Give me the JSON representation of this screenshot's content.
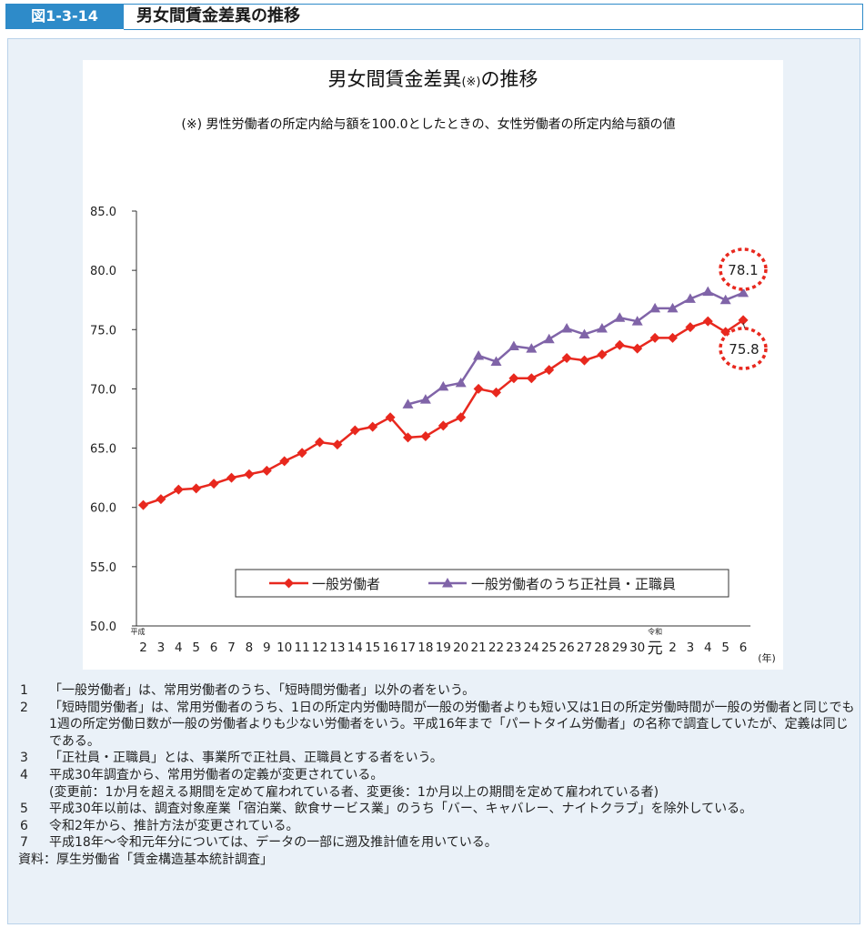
{
  "header": {
    "figure_number": "図1-3-14",
    "title": "男女間賃金差異の推移"
  },
  "chart_data": {
    "type": "line",
    "title_main": "男女間賃金差異",
    "title_mark": "(※)",
    "title_suffix": "の推移",
    "subtitle": "(※)  男性労働者の所定内給与額を100.0としたときの、女性労働者の所定内給与額の値",
    "ylim": [
      50,
      85
    ],
    "y_ticks": [
      "85.0",
      "80.0",
      "75.0",
      "70.0",
      "65.0",
      "60.0",
      "55.0",
      "50.0"
    ],
    "x_labels": [
      "2",
      "3",
      "4",
      "5",
      "6",
      "7",
      "8",
      "9",
      "10",
      "11",
      "12",
      "13",
      "14",
      "15",
      "16",
      "17",
      "18",
      "19",
      "20",
      "21",
      "22",
      "23",
      "24",
      "25",
      "26",
      "27",
      "28",
      "29",
      "30",
      "元",
      "2",
      "3",
      "4",
      "5",
      "6"
    ],
    "era_label_heisei": "平成",
    "era_label_reiwa": "令和",
    "x_unit": "(年)",
    "series": [
      {
        "name": "一般労働者",
        "color": "#e8281e",
        "marker": "diamond",
        "values": [
          60.2,
          60.7,
          61.5,
          61.6,
          62.0,
          62.5,
          62.8,
          63.1,
          63.9,
          64.6,
          65.5,
          65.3,
          66.5,
          66.8,
          67.6,
          65.9,
          66.0,
          66.9,
          67.6,
          70.0,
          69.7,
          70.9,
          70.9,
          71.6,
          72.6,
          72.4,
          72.9,
          73.7,
          73.4,
          74.3,
          74.3,
          75.2,
          75.7,
          74.8,
          75.8
        ]
      },
      {
        "name": "一般労働者のうち正社員・正職員",
        "color": "#8064a8",
        "marker": "triangle",
        "start_index": 15,
        "values": [
          68.7,
          69.1,
          70.2,
          70.5,
          72.8,
          72.3,
          73.6,
          73.4,
          74.2,
          75.1,
          74.6,
          75.1,
          76.0,
          75.7,
          76.8,
          76.8,
          77.6,
          78.2,
          77.5,
          78.1
        ]
      }
    ],
    "annotations": [
      {
        "label": "78.1",
        "series": 1
      },
      {
        "label": "75.8",
        "series": 0
      }
    ],
    "legend_position": "bottom"
  },
  "notes": [
    {
      "num": "1",
      "text": "「一般労働者」は、常用労働者のうち、「短時間労働者」以外の者をいう。"
    },
    {
      "num": "2",
      "text": "「短時間労働者」は、常用労働者のうち、1日の所定内労働時間が一般の労働者よりも短い又は1日の所定労働時間が一般の労働者と同じでも1週の所定労働日数が一般の労働者よりも少ない労働者をいう。平成16年まで「パートタイム労働者」の名称で調査していたが、定義は同じである。"
    },
    {
      "num": "3",
      "text": "「正社員・正職員」とは、事業所で正社員、正職員とする者をいう。"
    },
    {
      "num": "4",
      "text": "平成30年調査から、常用労働者の定義が変更されている。",
      "cont": "(変更前：1か月を超える期間を定めて雇われている者、変更後：1か月以上の期間を定めて雇われている者)"
    },
    {
      "num": "5",
      "text": "平成30年以前は、調査対象産業「宿泊業、飲食サービス業」のうち「バー、キャバレー、ナイトクラブ」を除外している。"
    },
    {
      "num": "6",
      "text": "令和2年から、推計方法が変更されている。"
    },
    {
      "num": "7",
      "text": "平成18年～令和元年分については、データの一部に遡及推計値を用いている。"
    }
  ],
  "source": "資料：厚生労働省「賃金構造基本統計調査」"
}
